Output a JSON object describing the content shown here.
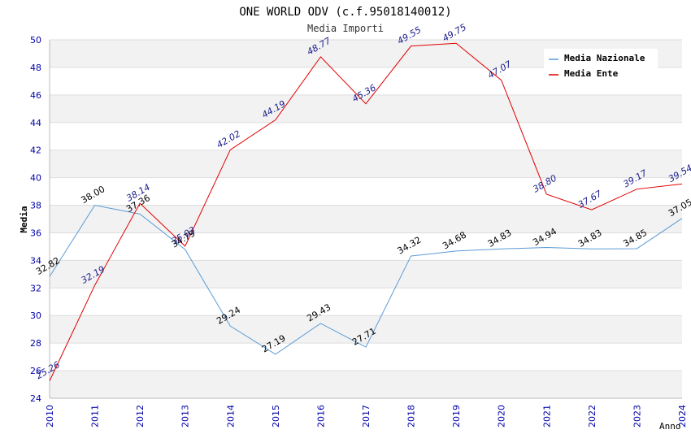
{
  "chart_data": {
    "type": "line",
    "title": "ONE WORLD ODV (c.f.95018140012)",
    "subtitle": "Media Importi",
    "ylabel": "Media",
    "xlabel": "Anno",
    "ylim": [
      24,
      50
    ],
    "yticks": [
      24,
      26,
      28,
      30,
      32,
      34,
      36,
      38,
      40,
      42,
      44,
      46,
      48,
      50
    ],
    "categories": [
      "2010",
      "2011",
      "2012",
      "2013",
      "2014",
      "2015",
      "2016",
      "2017",
      "2018",
      "2019",
      "2020",
      "2021",
      "2022",
      "2023",
      "2024"
    ],
    "series": [
      {
        "name": "Media Nazionale",
        "color": "#5b9bd5",
        "label_color": "#000000",
        "values": [
          32.82,
          38.0,
          37.36,
          34.79,
          29.24,
          27.19,
          29.43,
          27.71,
          34.32,
          34.68,
          34.83,
          34.94,
          34.83,
          34.85,
          37.05
        ],
        "labels": [
          "32.82",
          "38.00",
          "37.36",
          "34.79",
          "29.24",
          "27.19",
          "29.43",
          "27.71",
          "34.32",
          "34.68",
          "34.83",
          "34.94",
          "34.83",
          "34.85",
          "37.05"
        ]
      },
      {
        "name": "Media Ente",
        "color": "#e00000",
        "label_color": "#1a1a8c",
        "values": [
          25.26,
          32.19,
          38.14,
          35.03,
          42.02,
          44.19,
          48.77,
          45.36,
          49.55,
          49.75,
          47.07,
          38.8,
          37.67,
          39.17,
          39.54
        ],
        "labels": [
          "25.26",
          "32.19",
          "38.14",
          "35.03",
          "42.02",
          "44.19",
          "48.77",
          "45.36",
          "49.55",
          "49.75",
          "47.07",
          "38.80",
          "37.67",
          "39.17",
          "39.54"
        ]
      }
    ],
    "legend": "top-right",
    "grid": true
  }
}
